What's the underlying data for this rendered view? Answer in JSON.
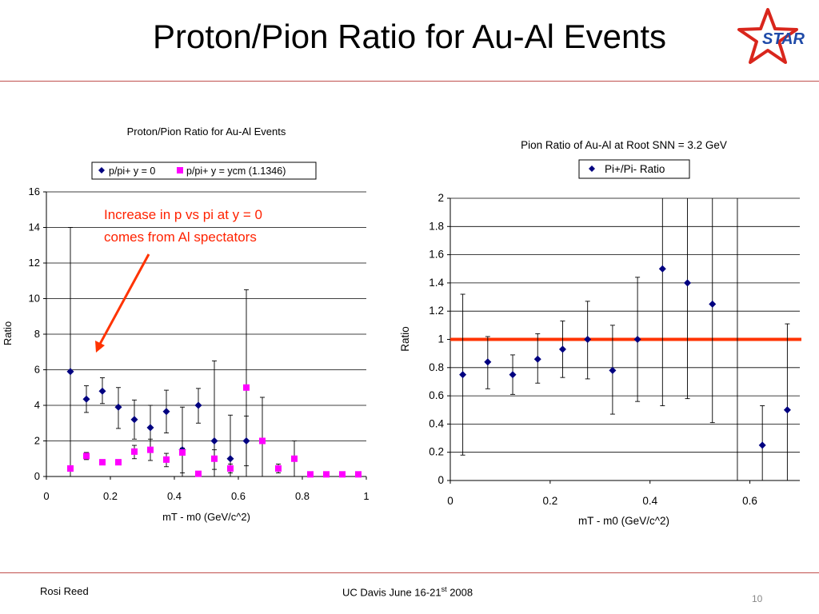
{
  "slide": {
    "title": "Proton/Pion Ratio for Au-Al Events",
    "logo_text": "STAR",
    "footer_left": "Rosi Reed",
    "footer_center_main": "UC Davis June 16-21",
    "footer_center_sup": "st",
    "footer_center_tail": " 2008",
    "page_number": "10",
    "accent_color": "#c0504d"
  },
  "chart_data": [
    {
      "type": "scatter",
      "title": "Proton/Pion Ratio for Au-Al Events",
      "xlabel": "mT - m0 (GeV/c^2)",
      "ylabel": "Ratio",
      "xlim": [
        0,
        1
      ],
      "ylim": [
        0,
        16
      ],
      "x_ticks": [
        "0",
        "0.2",
        "0.4",
        "0.6",
        "0.8",
        "1"
      ],
      "y_ticks": [
        "0",
        "2",
        "4",
        "6",
        "8",
        "10",
        "12",
        "14",
        "16"
      ],
      "grid": true,
      "legend_position": "top",
      "annotation": [
        "Increase in p vs pi at y = 0",
        "comes from Al spectators"
      ],
      "series": [
        {
          "name": "p/pi+ y = 0",
          "marker": "diamond",
          "color": "#000080",
          "points": [
            {
              "x": 0.075,
              "y": 5.9,
              "lo": 0,
              "hi": 14.0
            },
            {
              "x": 0.125,
              "y": 4.35,
              "lo": 3.6,
              "hi": 5.1
            },
            {
              "x": 0.175,
              "y": 4.8,
              "lo": 4.1,
              "hi": 5.55
            },
            {
              "x": 0.225,
              "y": 3.9,
              "lo": 2.7,
              "hi": 5.0
            },
            {
              "x": 0.275,
              "y": 3.2,
              "lo": 2.1,
              "hi": 4.3
            },
            {
              "x": 0.325,
              "y": 2.75,
              "lo": 1.5,
              "hi": 4.0
            },
            {
              "x": 0.375,
              "y": 3.65,
              "lo": 2.45,
              "hi": 4.85
            },
            {
              "x": 0.425,
              "y": 1.5,
              "lo": 0,
              "hi": 3.9
            },
            {
              "x": 0.475,
              "y": 4.0,
              "lo": 3.0,
              "hi": 4.95
            },
            {
              "x": 0.525,
              "y": 2.0,
              "lo": 0,
              "hi": 6.5
            },
            {
              "x": 0.575,
              "y": 1.0,
              "lo": 0,
              "hi": 3.45
            },
            {
              "x": 0.625,
              "y": 2.0,
              "lo": 0,
              "hi": 10.5
            }
          ]
        },
        {
          "name": "p/pi+ y = ycm (1.1346)",
          "marker": "square",
          "color": "#ff00ff",
          "points": [
            {
              "x": 0.075,
              "y": 0.45,
              "lo": 0.4,
              "hi": 0.5
            },
            {
              "x": 0.125,
              "y": 1.15,
              "lo": 0.95,
              "hi": 1.35
            },
            {
              "x": 0.175,
              "y": 0.8,
              "lo": 0.65,
              "hi": 0.95
            },
            {
              "x": 0.225,
              "y": 0.8,
              "lo": 0.65,
              "hi": 0.95
            },
            {
              "x": 0.275,
              "y": 1.4,
              "lo": 1.0,
              "hi": 1.75
            },
            {
              "x": 0.325,
              "y": 1.5,
              "lo": 0.9,
              "hi": 2.1
            },
            {
              "x": 0.375,
              "y": 0.95,
              "lo": 0.55,
              "hi": 1.3
            },
            {
              "x": 0.425,
              "y": 1.35,
              "lo": 0.2,
              "hi": 1.6
            },
            {
              "x": 0.475,
              "y": 0.15,
              "lo": 0.05,
              "hi": 0.25
            },
            {
              "x": 0.525,
              "y": 1.0,
              "lo": 0.4,
              "hi": 1.5
            },
            {
              "x": 0.575,
              "y": 0.45,
              "lo": 0.2,
              "hi": 0.7
            },
            {
              "x": 0.625,
              "y": 5.0,
              "lo": 0.6,
              "hi": 3.4
            },
            {
              "x": 0.675,
              "y": 2.0,
              "lo": 0,
              "hi": 4.45
            },
            {
              "x": 0.725,
              "y": 0.45,
              "lo": 0.2,
              "hi": 0.7
            },
            {
              "x": 0.775,
              "y": 1.0,
              "lo": 0,
              "hi": 2.0
            },
            {
              "x": 0.825,
              "y": 0.12,
              "lo": 0.05,
              "hi": 0.2
            },
            {
              "x": 0.875,
              "y": 0.12,
              "lo": 0.05,
              "hi": 0.2
            },
            {
              "x": 0.925,
              "y": 0.12,
              "lo": 0.05,
              "hi": 0.2
            },
            {
              "x": 0.975,
              "y": 0.12,
              "lo": 0.05,
              "hi": 0.2
            }
          ]
        }
      ]
    },
    {
      "type": "scatter",
      "title": "Pion Ratio of Au-Al at Root SNN = 3.2 GeV",
      "xlabel": "mT - m0 (GeV/c^2)",
      "ylabel": "Ratio",
      "xlim": [
        0,
        0.7
      ],
      "ylim": [
        0,
        2
      ],
      "x_ticks": [
        "0",
        "0.2",
        "0.4",
        "0.6"
      ],
      "y_ticks": [
        "0",
        "0.2",
        "0.4",
        "0.6",
        "0.8",
        "1",
        "1.2",
        "1.4",
        "1.6",
        "1.8",
        "2"
      ],
      "grid": true,
      "legend_position": "top",
      "reference_line": {
        "y": 1,
        "color": "#ff3300"
      },
      "series": [
        {
          "name": "Pi+/Pi- Ratio",
          "marker": "diamond",
          "color": "#000080",
          "points": [
            {
              "x": 0.025,
              "y": 0.75,
              "lo": 0.18,
              "hi": 1.32
            },
            {
              "x": 0.075,
              "y": 0.84,
              "lo": 0.65,
              "hi": 1.02
            },
            {
              "x": 0.125,
              "y": 0.75,
              "lo": 0.61,
              "hi": 0.89
            },
            {
              "x": 0.175,
              "y": 0.86,
              "lo": 0.69,
              "hi": 1.04
            },
            {
              "x": 0.225,
              "y": 0.93,
              "lo": 0.73,
              "hi": 1.13
            },
            {
              "x": 0.275,
              "y": 1.0,
              "lo": 0.72,
              "hi": 1.27
            },
            {
              "x": 0.325,
              "y": 0.78,
              "lo": 0.47,
              "hi": 1.1
            },
            {
              "x": 0.375,
              "y": 1.0,
              "lo": 0.56,
              "hi": 1.44
            },
            {
              "x": 0.425,
              "y": 1.5,
              "lo": 0.53,
              "hi": 2.0
            },
            {
              "x": 0.475,
              "y": 1.4,
              "lo": 0.58,
              "hi": 2.0
            },
            {
              "x": 0.525,
              "y": 1.25,
              "lo": 0.41,
              "hi": 2.0
            },
            {
              "x": 0.575,
              "y": null,
              "lo": 0,
              "hi": 2.0
            },
            {
              "x": 0.625,
              "y": 0.25,
              "lo": 0,
              "hi": 0.53
            },
            {
              "x": 0.675,
              "y": 0.5,
              "lo": 0,
              "hi": 1.11
            }
          ]
        }
      ]
    }
  ]
}
